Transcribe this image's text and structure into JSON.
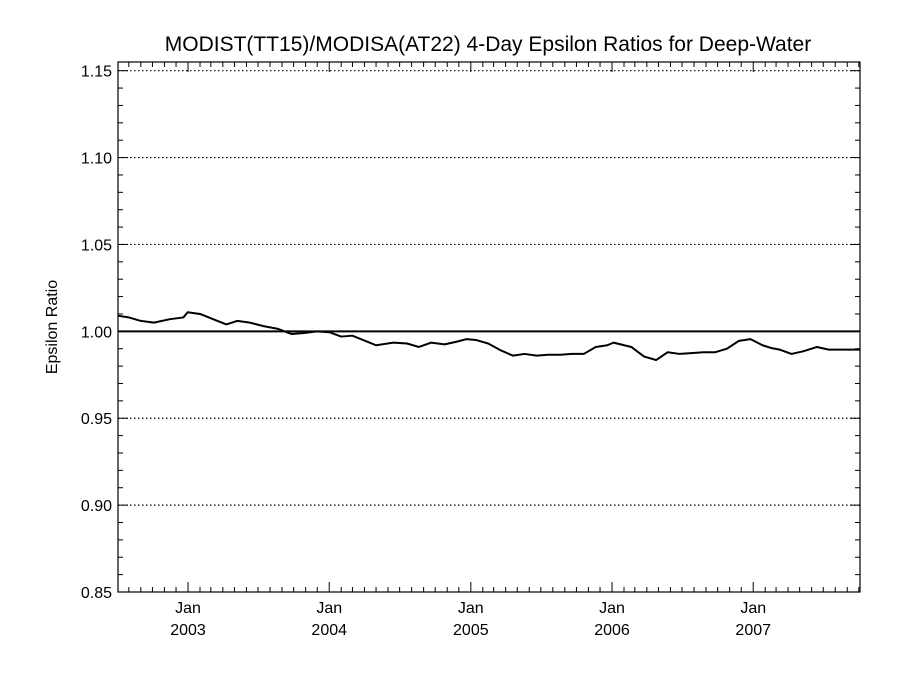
{
  "chart_data": {
    "type": "line",
    "title": "MODIST(TT15)/MODISA(AT22) 4-Day Epsilon Ratios for Deep-Water",
    "ylabel": "Epsilon Ratio",
    "xlabel": "",
    "xlim": [
      "2002-07-04",
      "2007-10-04"
    ],
    "ylim": [
      0.85,
      1.155
    ],
    "yticks": [
      {
        "value": 0.85,
        "label": "0.85"
      },
      {
        "value": 0.9,
        "label": "0.90"
      },
      {
        "value": 0.95,
        "label": "0.95"
      },
      {
        "value": 1.0,
        "label": "1.00"
      },
      {
        "value": 1.05,
        "label": "1.05"
      },
      {
        "value": 1.1,
        "label": "1.10"
      },
      {
        "value": 1.15,
        "label": "1.15"
      }
    ],
    "xticks": [
      {
        "date": "2003-01-01",
        "month": "Jan",
        "year": "2003"
      },
      {
        "date": "2004-01-01",
        "month": "Jan",
        "year": "2004"
      },
      {
        "date": "2005-01-01",
        "month": "Jan",
        "year": "2005"
      },
      {
        "date": "2006-01-01",
        "month": "Jan",
        "year": "2006"
      },
      {
        "date": "2007-01-01",
        "month": "Jan",
        "year": "2007"
      }
    ],
    "grid": "horizontal-dotted",
    "reference_line": 1.0,
    "series": [
      {
        "color": "#000000",
        "x": [
          "2002-07-04",
          "2002-08-01",
          "2002-09-01",
          "2002-10-05",
          "2002-11-15",
          "2002-12-20",
          "2002-12-31",
          "2003-02-01",
          "2003-04-10",
          "2003-05-08",
          "2003-06-10",
          "2003-07-15",
          "2003-08-20",
          "2003-09-25",
          "2003-10-25",
          "2003-12-01",
          "2004-01-01",
          "2004-02-01",
          "2004-03-01",
          "2004-05-01",
          "2004-06-15",
          "2004-07-20",
          "2004-08-20",
          "2004-09-20",
          "2004-10-25",
          "2004-11-25",
          "2004-12-20",
          "2005-01-15",
          "2005-02-15",
          "2005-03-20",
          "2005-04-20",
          "2005-05-20",
          "2005-06-20",
          "2005-07-20",
          "2005-08-20",
          "2005-09-20",
          "2005-10-20",
          "2005-11-20",
          "2005-12-20",
          "2006-01-05",
          "2006-02-20",
          "2006-03-25",
          "2006-04-25",
          "2006-05-25",
          "2006-06-25",
          "2006-07-25",
          "2006-08-25",
          "2006-09-25",
          "2006-10-25",
          "2006-11-25",
          "2006-12-25",
          "2007-01-25",
          "2007-02-15",
          "2007-03-10",
          "2007-04-10",
          "2007-05-10",
          "2007-06-15",
          "2007-07-15",
          "2007-08-15",
          "2007-09-10",
          "2007-10-04"
        ],
        "y": [
          1.009,
          1.008,
          1.006,
          1.005,
          1.007,
          1.008,
          1.011,
          1.01,
          1.004,
          1.006,
          1.005,
          1.003,
          1.0015,
          0.9985,
          0.999,
          1.0,
          0.9995,
          0.997,
          0.9975,
          0.992,
          0.9935,
          0.993,
          0.991,
          0.9935,
          0.9925,
          0.994,
          0.9955,
          0.995,
          0.993,
          0.989,
          0.986,
          0.987,
          0.986,
          0.9865,
          0.9865,
          0.987,
          0.987,
          0.991,
          0.992,
          0.9935,
          0.991,
          0.9855,
          0.9835,
          0.988,
          0.987,
          0.9875,
          0.988,
          0.988,
          0.99,
          0.9945,
          0.9955,
          0.992,
          0.9905,
          0.9895,
          0.987,
          0.9885,
          0.991,
          0.9895,
          0.9895,
          0.9895,
          0.9895
        ]
      }
    ]
  }
}
